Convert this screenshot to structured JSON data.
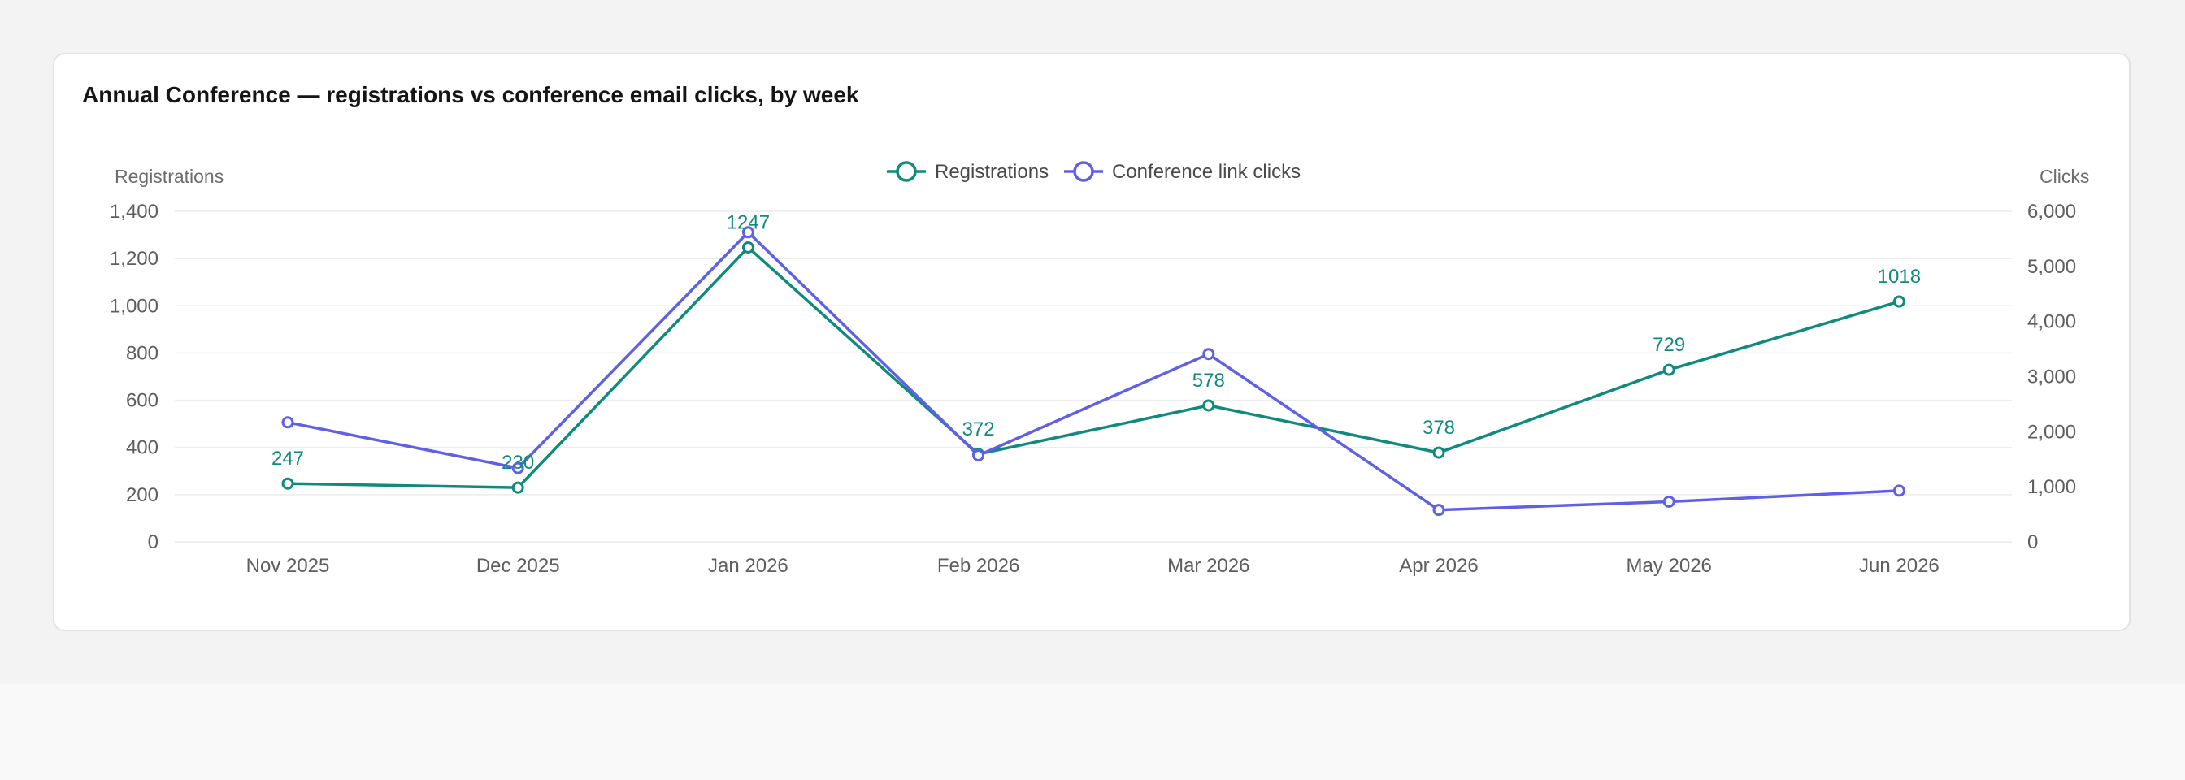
{
  "title": "Annual Conference — registrations vs conference email clicks, by week",
  "colors": {
    "registrations": "#0f8a7c",
    "clicks": "#6060e6",
    "grid": "#ececec"
  },
  "chart_data": {
    "type": "line",
    "categories": [
      "Nov 2025",
      "Dec 2025",
      "Jan 2026",
      "Feb 2026",
      "Mar 2026",
      "Apr 2026",
      "May 2026",
      "Jun 2026"
    ],
    "series": [
      {
        "name": "Registrations",
        "axis": "left",
        "values": [
          247,
          230,
          1247,
          372,
          578,
          378,
          729,
          1018
        ],
        "data_labels": [
          "247",
          "230",
          "1247",
          "372",
          "578",
          "378",
          "729",
          "1018"
        ]
      },
      {
        "name": "Conference link clicks",
        "axis": "right",
        "values": [
          2170,
          1340,
          5620,
          1570,
          3410,
          580,
          730,
          930
        ]
      }
    ],
    "y_left": {
      "label": "Registrations",
      "range": [
        0,
        1400
      ],
      "ticks": [
        "0",
        "200",
        "400",
        "600",
        "800",
        "1,000",
        "1,200",
        "1,400"
      ]
    },
    "y_right": {
      "label": "Clicks",
      "range": [
        0,
        6000
      ],
      "ticks": [
        "0",
        "1,000",
        "2,000",
        "3,000",
        "4,000",
        "5,000",
        "6,000"
      ]
    },
    "grid": true,
    "legend": "top-center"
  }
}
